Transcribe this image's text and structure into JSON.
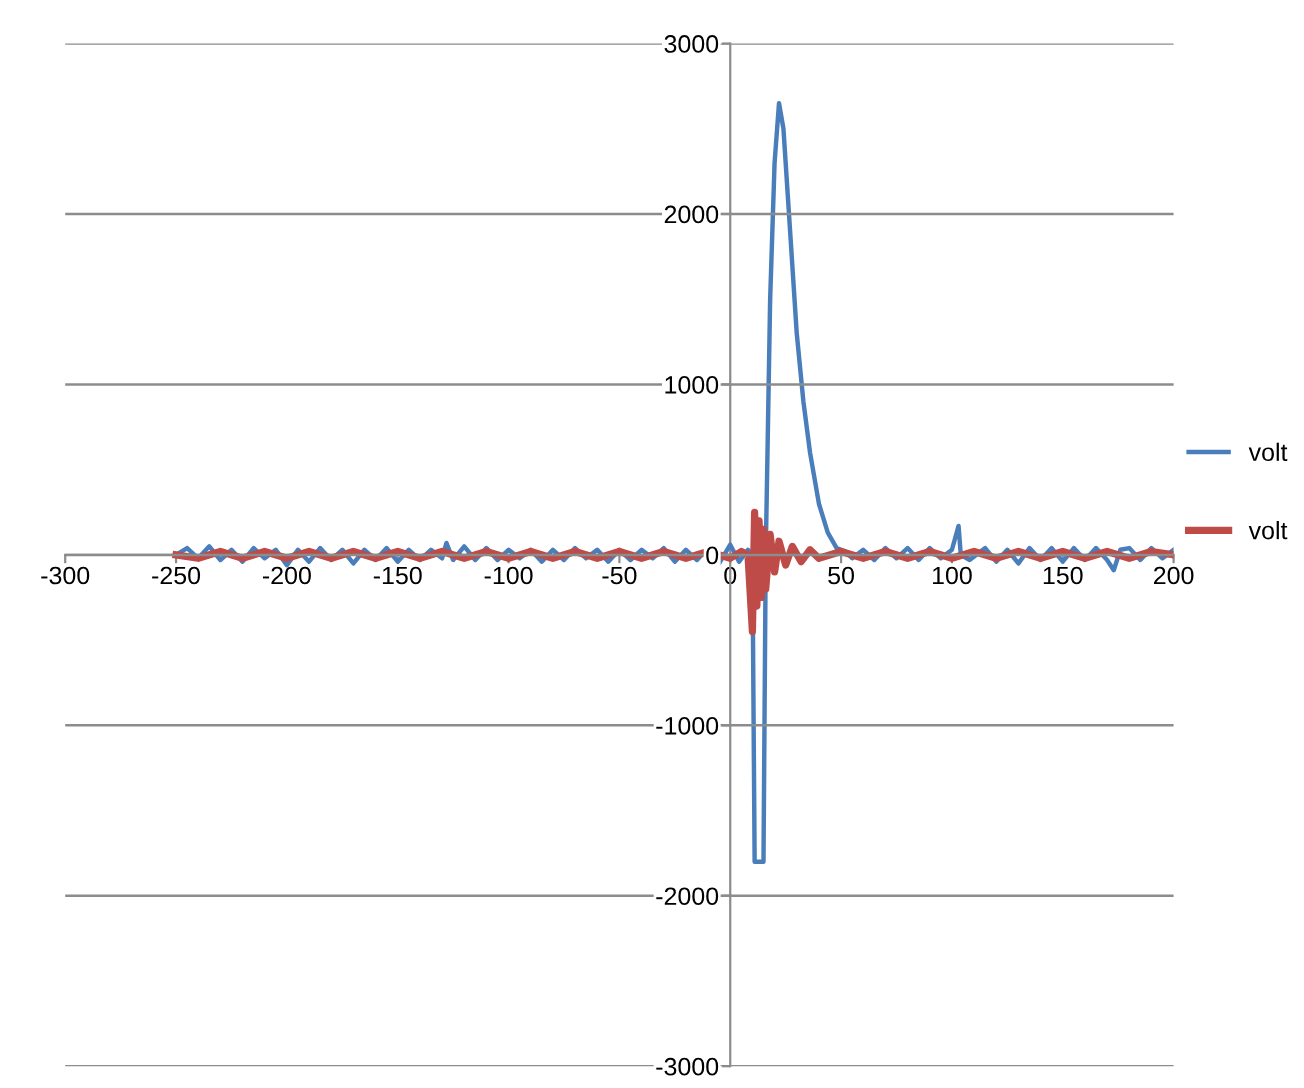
{
  "chart_data": {
    "type": "line",
    "xlim": [
      -300,
      200
    ],
    "xticks": [
      -300,
      -250,
      -200,
      -150,
      -100,
      -50,
      0,
      50,
      100,
      150,
      200
    ],
    "ylim": [
      -3000,
      3000
    ],
    "yticks": [
      -3000,
      -2000,
      -1000,
      0,
      1000,
      2000,
      3000
    ],
    "grid": "y",
    "legend": "right",
    "marker": "none",
    "line_style": "solid",
    "series": [
      {
        "name": "volt",
        "color": "#4a7ebb",
        "x": [
          -250,
          -245,
          -240,
          -235,
          -230,
          -225,
          -220,
          -215,
          -210,
          -205,
          -200,
          -195,
          -190,
          -185,
          -180,
          -175,
          -170,
          -165,
          -160,
          -155,
          -150,
          -145,
          -140,
          -135,
          -130,
          -128,
          -125,
          -120,
          -115,
          -110,
          -105,
          -100,
          -95,
          -90,
          -85,
          -80,
          -75,
          -70,
          -65,
          -60,
          -55,
          -50,
          -45,
          -40,
          -35,
          -30,
          -25,
          -20,
          -15,
          -10,
          -5,
          0,
          4,
          8,
          10,
          11,
          15,
          16,
          18,
          20,
          22,
          24,
          26,
          28,
          30,
          33,
          36,
          40,
          44,
          48,
          52,
          55,
          60,
          65,
          70,
          75,
          80,
          85,
          90,
          95,
          100,
          103,
          104,
          108,
          115,
          120,
          125,
          130,
          135,
          140,
          145,
          150,
          155,
          160,
          165,
          170,
          173,
          176,
          180,
          185,
          190,
          195,
          200
        ],
        "values": [
          0,
          40,
          -20,
          50,
          -30,
          30,
          -40,
          40,
          -20,
          30,
          -60,
          30,
          -40,
          40,
          -30,
          30,
          -50,
          30,
          -30,
          40,
          -40,
          30,
          -30,
          30,
          -20,
          70,
          -30,
          50,
          -30,
          40,
          -30,
          30,
          -20,
          30,
          -40,
          30,
          -30,
          40,
          -20,
          30,
          -40,
          30,
          -30,
          30,
          -20,
          40,
          -40,
          30,
          -30,
          40,
          -50,
          60,
          -40,
          30,
          0,
          -1800,
          -1800,
          0,
          1500,
          2300,
          2650,
          2500,
          2100,
          1700,
          1300,
          900,
          600,
          300,
          130,
          40,
          20,
          -20,
          30,
          -30,
          40,
          -20,
          40,
          -30,
          40,
          -20,
          30,
          170,
          0,
          -30,
          40,
          -40,
          30,
          -50,
          40,
          -30,
          40,
          -40,
          40,
          -30,
          40,
          -30,
          -90,
          30,
          40,
          -30,
          40,
          -20,
          30
        ]
      },
      {
        "name": "volt",
        "color": "#be4b48",
        "x": [
          -250,
          -240,
          -230,
          -220,
          -210,
          -200,
          -190,
          -180,
          -170,
          -160,
          -150,
          -140,
          -130,
          -120,
          -110,
          -100,
          -90,
          -80,
          -70,
          -60,
          -50,
          -40,
          -30,
          -20,
          -10,
          0,
          5,
          8,
          10,
          11,
          12,
          13,
          14,
          15,
          16,
          18,
          20,
          22,
          25,
          28,
          32,
          36,
          40,
          50,
          60,
          70,
          80,
          90,
          100,
          110,
          120,
          130,
          140,
          150,
          160,
          170,
          180,
          190,
          200
        ],
        "values": [
          0,
          -20,
          20,
          -20,
          20,
          -20,
          20,
          -20,
          20,
          -20,
          20,
          -20,
          20,
          -20,
          20,
          -20,
          20,
          -20,
          20,
          -20,
          20,
          -20,
          20,
          -20,
          20,
          -20,
          20,
          0,
          -450,
          250,
          -300,
          200,
          -250,
          150,
          -200,
          120,
          -100,
          80,
          -60,
          50,
          -40,
          30,
          -20,
          20,
          -20,
          20,
          -20,
          20,
          -20,
          20,
          -20,
          20,
          -20,
          20,
          -20,
          20,
          -20,
          20,
          0
        ]
      }
    ]
  }
}
